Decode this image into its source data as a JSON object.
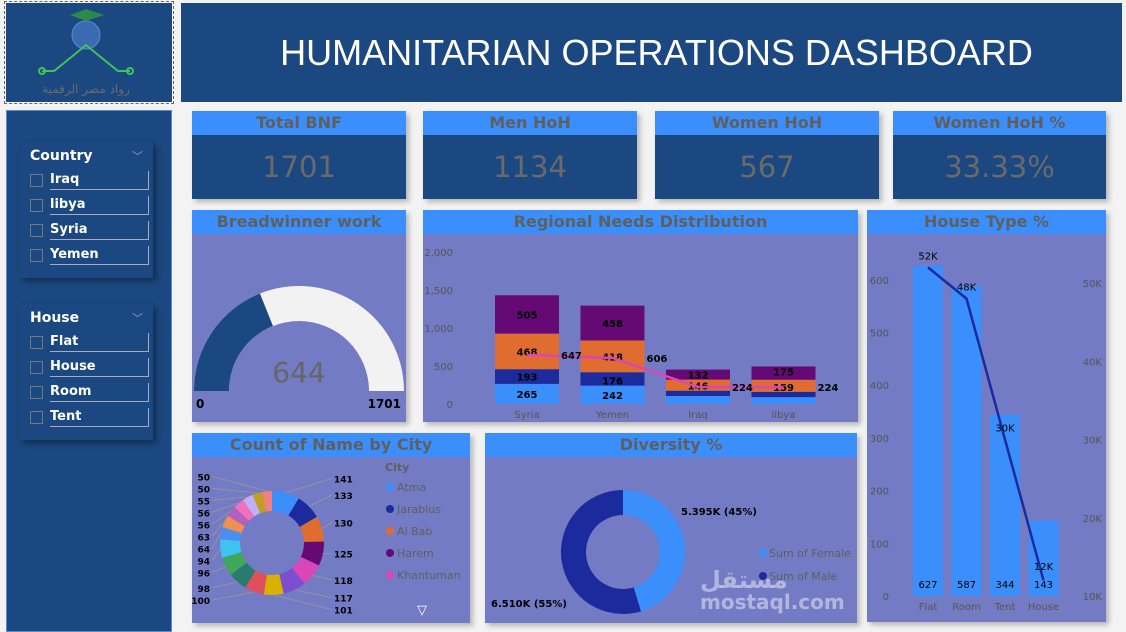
{
  "header": {
    "title": "HUMANITARIAN OPERATIONS DASHBOARD",
    "logo_text": "رواد مصر الرقمية"
  },
  "colors": {
    "navy": "#1b4880",
    "panel": "#737bc4",
    "header_blue": "#3a8ffd"
  },
  "slicers": [
    {
      "title": "Country",
      "items": [
        "Iraq",
        "libya",
        "Syria",
        "Yemen"
      ]
    },
    {
      "title": "House",
      "items": [
        "Flat",
        "House",
        "Room",
        "Tent"
      ]
    }
  ],
  "kpis": [
    {
      "label": "Total BNF",
      "value": "1701"
    },
    {
      "label": "Men HoH",
      "value": "1134"
    },
    {
      "label": "Women HoH",
      "value": "567"
    },
    {
      "label": "Women HoH %",
      "value": "33.33%"
    }
  ],
  "gauge": {
    "title": "Breadwinner work",
    "value": 644,
    "value_label": "644",
    "min_label": "0",
    "max_label": "1701",
    "min": 0,
    "max": 1701
  },
  "chart_data": [
    {
      "type": "bar",
      "title": "Regional Needs Distribution",
      "stacked": true,
      "categories": [
        "Syria",
        "Yemen",
        "Iraq",
        "libya"
      ],
      "yticks": [
        "0",
        "500",
        "1,000",
        "1,500",
        "2,000"
      ],
      "ylim": [
        0,
        2000
      ],
      "series": [
        {
          "color": "#3a8ffd",
          "values": [
            265,
            242,
            105,
            90
          ],
          "labels": [
            "265",
            "242",
            "",
            ""
          ]
        },
        {
          "color": "#1b2a9c",
          "values": [
            193,
            176,
            70,
            70
          ],
          "labels": [
            "193",
            "176",
            "",
            ""
          ]
        },
        {
          "color": "#e06c30",
          "values": [
            468,
            418,
            146,
            159
          ],
          "labels": [
            "468",
            "418",
            "146",
            "159"
          ]
        },
        {
          "color": "#650a74",
          "values": [
            505,
            458,
            132,
            175
          ],
          "labels": [
            "505",
            "458",
            "132",
            "175"
          ]
        }
      ],
      "line": {
        "color": "#d946b8",
        "values": [
          647,
          606,
          224,
          224
        ],
        "labels": [
          "647",
          "606",
          "224",
          "224"
        ]
      }
    },
    {
      "type": "pie",
      "title": "Count of Name by City",
      "donut": true,
      "legend_title": "City",
      "legend": [
        "Atma",
        "Jarablus",
        "Al Bab",
        "Harem",
        "Khantuman"
      ],
      "values": [
        141,
        133,
        130,
        125,
        118,
        117,
        101,
        100,
        98,
        96,
        94,
        64,
        63,
        56,
        56,
        55,
        50,
        50
      ],
      "colors": [
        "#3a8ffd",
        "#1b2a9c",
        "#e06c30",
        "#650a74",
        "#d946b8",
        "#7b4fd0",
        "#d8b000",
        "#e0505a",
        "#2a7a70",
        "#3ea85a",
        "#3ec4f0",
        "#4a90f0",
        "#f09050",
        "#b060c0",
        "#f070c0",
        "#c0b0f8",
        "#c0a020",
        "#f08080",
        "#40d0b0"
      ]
    },
    {
      "type": "pie",
      "title": "Diversity %",
      "donut": true,
      "series": [
        {
          "name": "Sum of Female",
          "value": 5395,
          "label": "5.395K (45%)",
          "color": "#3a8ffd"
        },
        {
          "name": "Sum of Male",
          "value": 6510,
          "label": "6.510K (55%)",
          "color": "#1b2a9c"
        }
      ]
    },
    {
      "type": "bar",
      "title": "House Type %",
      "categories": [
        "Flat",
        "Room",
        "Tent",
        "House"
      ],
      "values": [
        627,
        587,
        344,
        143
      ],
      "ylim": [
        0,
        650
      ],
      "yticks": [
        "0",
        "100",
        "200",
        "300",
        "400",
        "500",
        "600"
      ],
      "line": {
        "values": [
          52000,
          48000,
          30000,
          12000
        ],
        "labels": [
          "52K",
          "48K",
          "30K",
          "12K"
        ],
        "color": "#1b2a9c"
      },
      "y2ticks": [
        "10K",
        "20K",
        "30K",
        "40K",
        "50K"
      ],
      "y2lim": [
        10000,
        51000
      ]
    }
  ],
  "watermark": {
    "text1": "مستقل",
    "text2": "mostaql.com"
  }
}
